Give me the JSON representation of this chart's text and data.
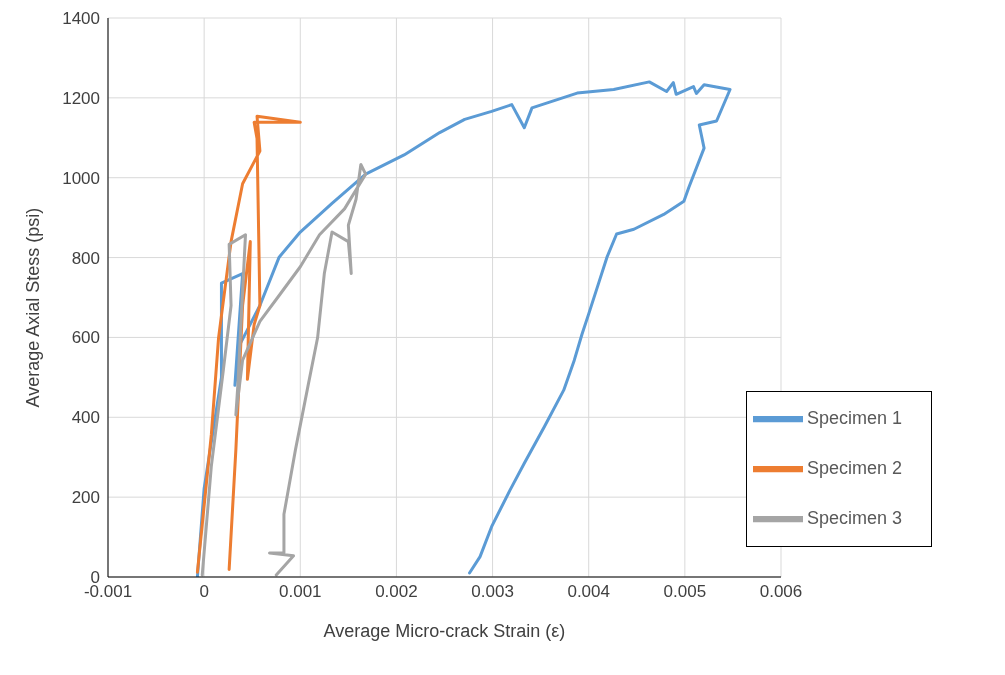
{
  "chart_data": {
    "type": "line",
    "xlabel": "Average Micro-crack Strain (ε)",
    "ylabel": "Average Axial Stess (psi)",
    "xlim": [
      -0.001,
      0.006
    ],
    "xticks": [
      -0.001,
      0,
      0.001,
      0.002,
      0.003,
      0.004,
      0.005,
      0.006
    ],
    "ylim": [
      0,
      1400
    ],
    "yticks": [
      0,
      200,
      400,
      600,
      800,
      1000,
      1200,
      1400
    ],
    "grid": true,
    "legend": "right",
    "marker": "none",
    "line_style": "solid",
    "series": [
      {
        "name": "Specimen 1",
        "color": "#5b9bd5",
        "x": [
          -7e-05,
          0,
          0.00018,
          0.00018,
          0.0004,
          0.00032,
          0.000375,
          0.00058,
          0.00078,
          0.001,
          0.00133,
          0.00168,
          0.00208,
          0.00245,
          0.00271,
          0.00299,
          0.0032,
          0.00333,
          0.00341,
          0.00388,
          0.00426,
          0.00463,
          0.00481,
          0.00488,
          0.00491,
          0.00509,
          0.00512,
          0.0052,
          0.00547,
          0.00533,
          0.00515,
          0.0052,
          0.00504,
          0.00499,
          0.00478,
          0.00447,
          0.00429,
          0.00419,
          0.00411,
          0.004,
          0.00393,
          0.00385,
          0.00374,
          0.00354,
          0.00333,
          0.00318,
          0.00299,
          0.00287,
          0.00276
        ],
        "values": [
          0,
          222,
          500,
          736,
          760,
          480,
          584,
          680,
          801,
          864,
          936,
          1009,
          1057,
          1113,
          1146,
          1166,
          1183,
          1125,
          1175,
          1212,
          1221,
          1240,
          1216,
          1238,
          1209,
          1228,
          1211,
          1233,
          1221,
          1142,
          1132,
          1074,
          975,
          941,
          908,
          871,
          859,
          801,
          741,
          659,
          608,
          543,
          468,
          377,
          285,
          217,
          126,
          51,
          10
        ]
      },
      {
        "name": "Specimen 2",
        "color": "#ed7d31",
        "x": [
          -7e-05,
          7.5e-05,
          0.00015,
          0.00028,
          0.0004,
          0.00058,
          0.00055,
          0.001,
          0.00052,
          0.00055,
          0.00058,
          0.00052,
          0.00045,
          0.00048,
          0.0004,
          0.00033,
          0.00026
        ],
        "values": [
          12,
          357,
          599,
          840,
          985,
          1067,
          1154,
          1139,
          1139,
          1098,
          680,
          632,
          495,
          840,
          680,
          319,
          19
        ]
      },
      {
        "name": "Specimen 3",
        "color": "#a5a5a5",
        "x": [
          -2e-05,
          7.5e-05,
          0.0002,
          0.00028,
          0.00026,
          0.00043,
          0.00035,
          0.00033,
          0.0004,
          0.00058,
          0.00078,
          0.001,
          0.0012,
          0.00146,
          0.00168,
          0.00163,
          0.00158,
          0.0015,
          0.00153,
          0.0015,
          0.00133,
          0.00125,
          0.00118,
          0.00108,
          0.00095,
          0.00083,
          0.00083,
          0.00068,
          0.00093,
          0.00075
        ],
        "values": [
          5,
          278,
          519,
          680,
          833,
          857,
          478,
          406,
          543,
          640,
          705,
          777,
          857,
          922,
          1009,
          1033,
          946,
          881,
          760,
          840,
          864,
          760,
          599,
          478,
          319,
          157,
          60,
          60,
          53,
          5
        ]
      }
    ]
  }
}
